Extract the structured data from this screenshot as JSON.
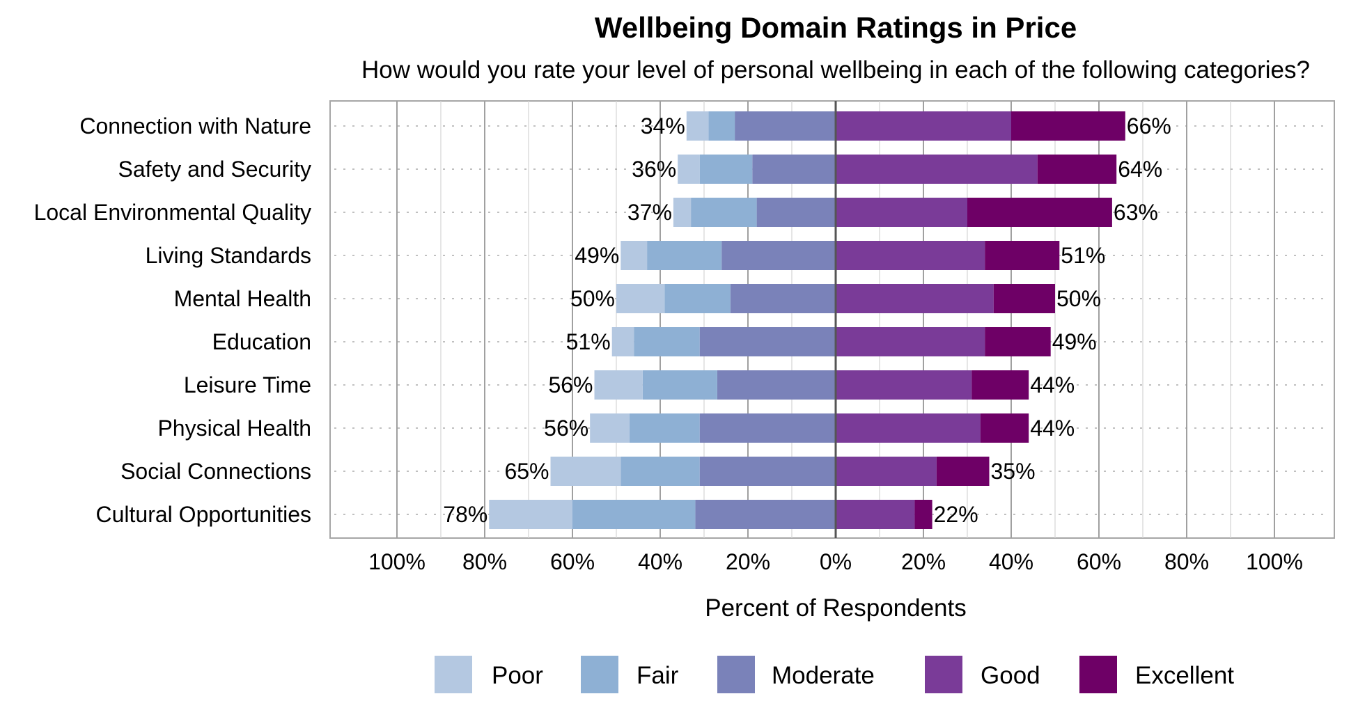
{
  "chart_data": {
    "type": "bar",
    "orientation": "horizontal",
    "stacked": true,
    "diverging": true,
    "title": "Wellbeing Domain Ratings in Price",
    "subtitle": "How would you rate your level of personal wellbeing in each of the following categories?",
    "xlabel": "Percent of Respondents",
    "xlim": [
      -100,
      100
    ],
    "x_ticks": [
      "100%",
      "80%",
      "60%",
      "40%",
      "20%",
      "0%",
      "20%",
      "40%",
      "60%",
      "80%",
      "100%"
    ],
    "grid": true,
    "legend_position": "bottom",
    "categories": [
      "Connection with Nature",
      "Safety and Security",
      "Local Environmental Quality",
      "Living Standards",
      "Mental Health",
      "Education",
      "Leisure Time",
      "Physical Health",
      "Social Connections",
      "Cultural Opportunities"
    ],
    "series": [
      {
        "name": "Poor",
        "side": "negative",
        "color": "#b4c8e1",
        "values": [
          5,
          5,
          4,
          6,
          11,
          5,
          11,
          9,
          16,
          19
        ]
      },
      {
        "name": "Fair",
        "side": "negative",
        "color": "#8eb0d4",
        "values": [
          6,
          12,
          15,
          17,
          15,
          15,
          17,
          16,
          18,
          28
        ]
      },
      {
        "name": "Moderate",
        "side": "negative",
        "color": "#7a82b9",
        "values": [
          23,
          19,
          18,
          26,
          24,
          31,
          27,
          31,
          31,
          32
        ]
      },
      {
        "name": "Good",
        "side": "positive",
        "color": "#7a3b98",
        "values": [
          40,
          46,
          30,
          34,
          36,
          34,
          31,
          33,
          23,
          18
        ]
      },
      {
        "name": "Excellent",
        "side": "positive",
        "color": "#6e0066",
        "values": [
          26,
          18,
          33,
          17,
          14,
          15,
          13,
          11,
          12,
          4
        ]
      }
    ],
    "negative_totals": [
      "34%",
      "36%",
      "37%",
      "49%",
      "50%",
      "51%",
      "56%",
      "56%",
      "65%",
      "78%"
    ],
    "positive_totals": [
      "66%",
      "64%",
      "63%",
      "51%",
      "50%",
      "49%",
      "44%",
      "44%",
      "35%",
      "22%"
    ]
  }
}
